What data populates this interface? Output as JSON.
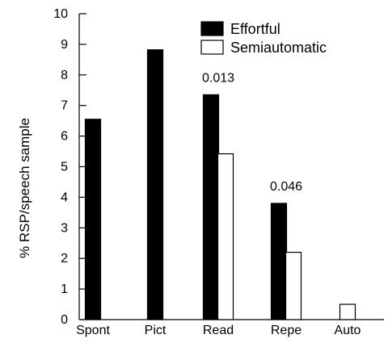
{
  "chart_data": {
    "type": "bar",
    "categories": [
      "Spont",
      "Pict",
      "Read",
      "Repe",
      "Auto"
    ],
    "series": [
      {
        "name": "Effortful",
        "values": [
          6.55,
          8.82,
          7.35,
          3.8,
          0
        ]
      },
      {
        "name": "Semiautomatic",
        "values": [
          0,
          0,
          5.42,
          2.2,
          0.5
        ]
      }
    ],
    "ylabel": "% RSP/speech sample",
    "xlabel": "",
    "ylim": [
      0,
      10
    ],
    "yticks": [
      0,
      1,
      2,
      3,
      4,
      5,
      6,
      7,
      8,
      9,
      10
    ],
    "annotations": [
      {
        "category": "Read",
        "text": "0.013"
      },
      {
        "category": "Repe",
        "text": "0.046"
      }
    ],
    "legend_position": "top-right",
    "grid": false,
    "colors": {
      "Effortful": "#000000",
      "Semiautomatic": "#ffffff",
      "outline": "#000000"
    }
  }
}
